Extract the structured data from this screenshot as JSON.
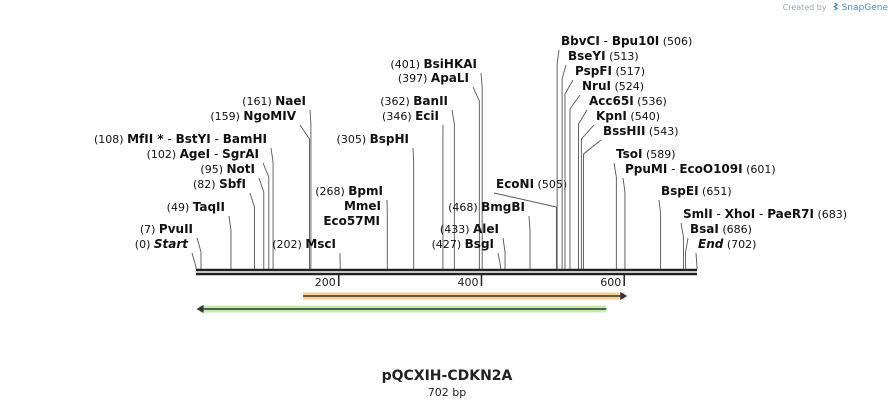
{
  "credit": {
    "text": "Created by",
    "brand": "SnapGene"
  },
  "title": "pQCXIH-CDKN2A",
  "subtitle": "702 bp",
  "sequence": {
    "length": 702
  },
  "ticks": [
    {
      "pos": 200,
      "label": "200"
    },
    {
      "pos": 400,
      "label": "400"
    },
    {
      "pos": 600,
      "label": "600"
    }
  ],
  "features": [
    {
      "name": "orange-feature",
      "start": 150,
      "end": 600,
      "direction": "forward",
      "color": "#f6a53a"
    },
    {
      "name": "green-feature",
      "start": 5,
      "end": 575,
      "direction": "reverse",
      "color": "#8ee06a"
    }
  ],
  "sites": [
    {
      "pos": 0,
      "text": "(0)",
      "enzymes": [
        {
          "name": "Start",
          "italic": true
        }
      ]
    },
    {
      "pos": 7,
      "text": "(7)",
      "enzymes": [
        {
          "name": "PvuII"
        }
      ]
    },
    {
      "pos": 49,
      "text": "(49)",
      "enzymes": [
        {
          "name": "TaqII"
        }
      ]
    },
    {
      "pos": 82,
      "text": "(82)",
      "enzymes": [
        {
          "name": "SbfI"
        }
      ]
    },
    {
      "pos": 95,
      "text": "(95)",
      "enzymes": [
        {
          "name": "NotI"
        }
      ]
    },
    {
      "pos": 102,
      "text": "(102)",
      "enzymes": [
        {
          "name": "AgeI"
        },
        {
          "name": "SgrAI"
        }
      ]
    },
    {
      "pos": 108,
      "text": "(108)",
      "enzymes": [
        {
          "name": "MfII *"
        },
        {
          "name": "BstYI"
        },
        {
          "name": "BamHI"
        }
      ]
    },
    {
      "pos": 159,
      "text": "(159)",
      "enzymes": [
        {
          "name": "NgoMIV"
        }
      ]
    },
    {
      "pos": 161,
      "text": "(161)",
      "enzymes": [
        {
          "name": "NaeI"
        }
      ]
    },
    {
      "pos": 202,
      "text": "(202)",
      "enzymes": [
        {
          "name": "MscI"
        }
      ]
    },
    {
      "pos": 268,
      "text": "(268)",
      "enzymes": [
        {
          "name": "BpmI"
        }
      ]
    },
    {
      "pos": 305,
      "text": "(305)",
      "enzymes": [
        {
          "name": "BspHI"
        }
      ]
    },
    {
      "pos": 346,
      "text": "(346)",
      "enzymes": [
        {
          "name": "EciI"
        }
      ]
    },
    {
      "pos": 362,
      "text": "(362)",
      "enzymes": [
        {
          "name": "BanII"
        }
      ]
    },
    {
      "pos": 397,
      "text": "(397)",
      "enzymes": [
        {
          "name": "ApaLI"
        }
      ]
    },
    {
      "pos": 401,
      "text": "(401)",
      "enzymes": [
        {
          "name": "BsiHKAI"
        }
      ]
    },
    {
      "pos": 427,
      "text": "(427)",
      "enzymes": [
        {
          "name": "BsgI"
        }
      ]
    },
    {
      "pos": 433,
      "text": "(433)",
      "enzymes": [
        {
          "name": "AleI"
        }
      ]
    },
    {
      "pos": 468,
      "text": "(468)",
      "enzymes": [
        {
          "name": "BmgBI"
        }
      ]
    },
    {
      "pos": 505,
      "text": "(505)",
      "enzymes": [
        {
          "name": "EcoNI"
        }
      ]
    },
    {
      "pos": 506,
      "text": "(506)",
      "enzymes": [
        {
          "name": "BbvCI"
        },
        {
          "name": "Bpu10I"
        }
      ]
    },
    {
      "pos": 513,
      "text": "(513)",
      "enzymes": [
        {
          "name": "BseYI"
        }
      ]
    },
    {
      "pos": 517,
      "text": "(517)",
      "enzymes": [
        {
          "name": "PspFI"
        }
      ]
    },
    {
      "pos": 524,
      "text": "(524)",
      "enzymes": [
        {
          "name": "NruI"
        }
      ]
    },
    {
      "pos": 536,
      "text": "(536)",
      "enzymes": [
        {
          "name": "Acc65I"
        }
      ]
    },
    {
      "pos": 540,
      "text": "(540)",
      "enzymes": [
        {
          "name": "KpnI"
        }
      ]
    },
    {
      "pos": 543,
      "text": "(543)",
      "enzymes": [
        {
          "name": "BssHII"
        }
      ]
    },
    {
      "pos": 589,
      "text": "(589)",
      "enzymes": [
        {
          "name": "TsoI"
        }
      ]
    },
    {
      "pos": 601,
      "text": "(601)",
      "enzymes": [
        {
          "name": "PpuMI"
        },
        {
          "name": "EcoO109I"
        }
      ]
    },
    {
      "pos": 651,
      "text": "(651)",
      "enzymes": [
        {
          "name": "BspEI"
        }
      ]
    },
    {
      "pos": 683,
      "text": "(683)",
      "enzymes": [
        {
          "name": "SmlI"
        },
        {
          "name": "XhoI"
        },
        {
          "name": "PaeR7I"
        }
      ]
    },
    {
      "pos": 686,
      "text": "(686)",
      "enzymes": [
        {
          "name": "BsaI"
        }
      ]
    },
    {
      "pos": 702,
      "text": "(702)",
      "enzymes": [
        {
          "name": "End",
          "italic": true
        }
      ]
    }
  ],
  "extra_labels": [
    {
      "pos": 268,
      "enzymes": [
        {
          "name": "MmeI"
        }
      ]
    },
    {
      "pos": 268,
      "enzymes": [
        {
          "name": "Eco57MI"
        }
      ]
    }
  ]
}
